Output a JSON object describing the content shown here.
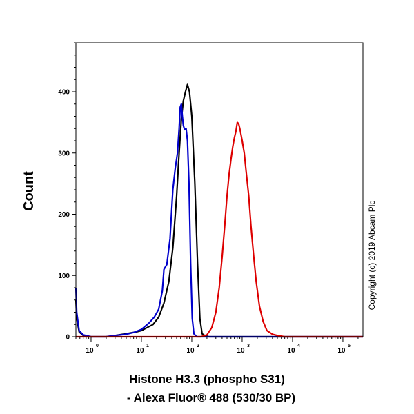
{
  "chart_data": {
    "type": "line",
    "title": "",
    "ylabel": "Count",
    "xlabel_lines": [
      "Histone H3.3 (phospho S31)",
      "- Alexa Fluor® 488 (530/30 BP)"
    ],
    "copyright": "Copyright (c) 2019 Abcam Plc",
    "x_scale": "log",
    "xlim": [
      0.5,
      250000
    ],
    "ylim": [
      0,
      480
    ],
    "y_ticks": [
      0,
      100,
      200,
      300,
      400
    ],
    "x_ticks": [
      {
        "value": 1,
        "base": "10",
        "exp": "0"
      },
      {
        "value": 10,
        "base": "10",
        "exp": "1"
      },
      {
        "value": 100,
        "base": "10",
        "exp": "2"
      },
      {
        "value": 1000,
        "base": "10",
        "exp": "3"
      },
      {
        "value": 10000,
        "base": "10",
        "exp": "4"
      },
      {
        "value": 100000,
        "base": "10",
        "exp": "5"
      }
    ],
    "grid": false,
    "legend": "none",
    "series": [
      {
        "color": "#000000",
        "points": [
          [
            0.5,
            60
          ],
          [
            0.52,
            30
          ],
          [
            0.58,
            8
          ],
          [
            0.7,
            2
          ],
          [
            1,
            0
          ],
          [
            2,
            0
          ],
          [
            3,
            2
          ],
          [
            5,
            5
          ],
          [
            8,
            8
          ],
          [
            10,
            10
          ],
          [
            13,
            15
          ],
          [
            17,
            20
          ],
          [
            22,
            32
          ],
          [
            28,
            55
          ],
          [
            35,
            90
          ],
          [
            42,
            145
          ],
          [
            50,
            230
          ],
          [
            56,
            300
          ],
          [
            62,
            355
          ],
          [
            68,
            385
          ],
          [
            75,
            400
          ],
          [
            82,
            412
          ],
          [
            90,
            400
          ],
          [
            100,
            360
          ],
          [
            115,
            250
          ],
          [
            130,
            120
          ],
          [
            145,
            30
          ],
          [
            160,
            5
          ],
          [
            180,
            2
          ],
          [
            220,
            0
          ],
          [
            1000,
            0
          ],
          [
            10000,
            0
          ],
          [
            100000,
            0
          ],
          [
            250000,
            0
          ]
        ]
      },
      {
        "color": "#0000cc",
        "points": [
          [
            0.5,
            80
          ],
          [
            0.52,
            40
          ],
          [
            0.58,
            10
          ],
          [
            0.7,
            3
          ],
          [
            1,
            0
          ],
          [
            2,
            0
          ],
          [
            3,
            2
          ],
          [
            5,
            4
          ],
          [
            7,
            7
          ],
          [
            10,
            12
          ],
          [
            14,
            22
          ],
          [
            18,
            32
          ],
          [
            22,
            45
          ],
          [
            26,
            75
          ],
          [
            28,
            110
          ],
          [
            32,
            118
          ],
          [
            37,
            160
          ],
          [
            42,
            240
          ],
          [
            47,
            275
          ],
          [
            52,
            300
          ],
          [
            56,
            340
          ],
          [
            59,
            375
          ],
          [
            62,
            380
          ],
          [
            65,
            360
          ],
          [
            68,
            345
          ],
          [
            72,
            338
          ],
          [
            77,
            340
          ],
          [
            82,
            320
          ],
          [
            88,
            250
          ],
          [
            95,
            120
          ],
          [
            102,
            30
          ],
          [
            110,
            5
          ],
          [
            125,
            0
          ],
          [
            250000,
            0
          ]
        ]
      },
      {
        "color": "#dd0000",
        "points": [
          [
            0.5,
            0
          ],
          [
            100,
            0
          ],
          [
            150,
            0
          ],
          [
            200,
            3
          ],
          [
            250,
            15
          ],
          [
            300,
            40
          ],
          [
            350,
            80
          ],
          [
            400,
            130
          ],
          [
            450,
            180
          ],
          [
            500,
            230
          ],
          [
            550,
            265
          ],
          [
            600,
            290
          ],
          [
            650,
            310
          ],
          [
            700,
            325
          ],
          [
            750,
            335
          ],
          [
            800,
            350
          ],
          [
            850,
            348
          ],
          [
            900,
            340
          ],
          [
            950,
            330
          ],
          [
            1000,
            320
          ],
          [
            1100,
            300
          ],
          [
            1200,
            270
          ],
          [
            1350,
            230
          ],
          [
            1500,
            180
          ],
          [
            1700,
            130
          ],
          [
            1900,
            90
          ],
          [
            2200,
            50
          ],
          [
            2600,
            25
          ],
          [
            3100,
            10
          ],
          [
            4000,
            4
          ],
          [
            5000,
            2
          ],
          [
            7000,
            0
          ],
          [
            250000,
            0
          ]
        ]
      }
    ]
  }
}
